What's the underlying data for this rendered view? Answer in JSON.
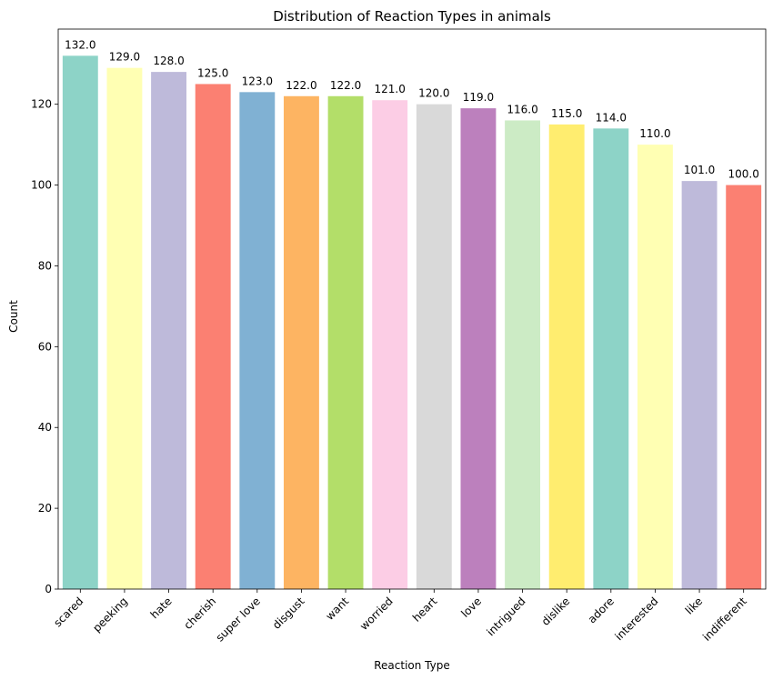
{
  "chart_data": {
    "type": "bar",
    "title": "Distribution of Reaction Types in animals",
    "xlabel": "Reaction Type",
    "ylabel": "Count",
    "categories": [
      "scared",
      "peeking",
      "hate",
      "cherish",
      "super love",
      "disgust",
      "want",
      "worried",
      "heart",
      "love",
      "intrigued",
      "dislike",
      "adore",
      "interested",
      "like",
      "indifferent"
    ],
    "values": [
      132,
      129,
      128,
      125,
      123,
      122,
      122,
      121,
      120,
      119,
      116,
      115,
      114,
      110,
      101,
      100
    ],
    "data_labels": [
      "132.0",
      "129.0",
      "128.0",
      "125.0",
      "123.0",
      "122.0",
      "122.0",
      "121.0",
      "120.0",
      "119.0",
      "116.0",
      "115.0",
      "114.0",
      "110.0",
      "101.0",
      "100.0"
    ],
    "colors": [
      "#8dd3c7",
      "#ffffb3",
      "#bebada",
      "#fb8072",
      "#80b1d3",
      "#fdb462",
      "#b3de69",
      "#fccde5",
      "#d9d9d9",
      "#bc80bd",
      "#ccebc5",
      "#ffed6f",
      "#8dd3c7",
      "#ffffb3",
      "#bebada",
      "#fb8072"
    ],
    "yticks": [
      0,
      20,
      40,
      60,
      80,
      100,
      120
    ],
    "ylim": [
      0,
      138.6
    ],
    "grid": false,
    "legend": false
  }
}
